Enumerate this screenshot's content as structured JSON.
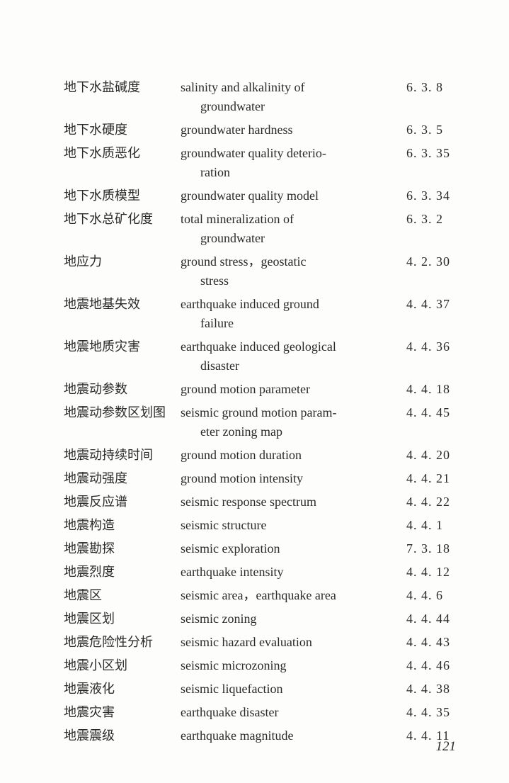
{
  "entries": [
    {
      "cn": "地下水盐碱度",
      "en": "salinity and alkalinity of",
      "en2": "groundwater",
      "num": "6. 3. 8"
    },
    {
      "cn": "地下水硬度",
      "en": "groundwater hardness",
      "en2": "",
      "num": "6. 3. 5"
    },
    {
      "cn": "地下水质恶化",
      "en": "groundwater quality deterio-",
      "en2": "ration",
      "num": "6. 3. 35"
    },
    {
      "cn": "地下水质模型",
      "en": "groundwater quality model",
      "en2": "",
      "num": "6. 3. 34"
    },
    {
      "cn": "地下水总矿化度",
      "en": "total mineralization of",
      "en2": "groundwater",
      "num": "6. 3. 2"
    },
    {
      "cn": "地应力",
      "en": "ground stress，geostatic",
      "en2": "stress",
      "num": "4. 2. 30"
    },
    {
      "cn": "地震地基失效",
      "en": "earthquake induced ground",
      "en2": "failure",
      "num": "4. 4. 37"
    },
    {
      "cn": "地震地质灾害",
      "en": "earthquake induced geological",
      "en2": "disaster",
      "num": "4. 4. 36"
    },
    {
      "cn": "地震动参数",
      "en": "ground motion parameter",
      "en2": "",
      "num": "4. 4. 18"
    },
    {
      "cn": "地震动参数区划图",
      "en": "seismic ground motion param-",
      "en2": "eter zoning map",
      "num": "4. 4. 45"
    },
    {
      "cn": "地震动持续时间",
      "en": "ground motion duration",
      "en2": "",
      "num": "4. 4. 20"
    },
    {
      "cn": "地震动强度",
      "en": "ground motion intensity",
      "en2": "",
      "num": "4. 4. 21"
    },
    {
      "cn": "地震反应谱",
      "en": "seismic response spectrum",
      "en2": "",
      "num": "4. 4. 22"
    },
    {
      "cn": "地震构造",
      "en": "seismic structure",
      "en2": "",
      "num": "4. 4. 1"
    },
    {
      "cn": "地震勘探",
      "en": "seismic exploration",
      "en2": "",
      "num": "7. 3. 18"
    },
    {
      "cn": "地震烈度",
      "en": "earthquake intensity",
      "en2": "",
      "num": "4. 4. 12"
    },
    {
      "cn": "地震区",
      "en": "seismic area，earthquake area",
      "en2": "",
      "num": "4. 4. 6"
    },
    {
      "cn": "地震区划",
      "en": "seismic zoning",
      "en2": "",
      "num": "4. 4. 44"
    },
    {
      "cn": "地震危险性分析",
      "en": "seismic hazard evaluation",
      "en2": "",
      "num": "4. 4. 43"
    },
    {
      "cn": "地震小区划",
      "en": "seismic microzoning",
      "en2": "",
      "num": "4. 4. 46"
    },
    {
      "cn": "地震液化",
      "en": "seismic liquefaction",
      "en2": "",
      "num": "4. 4. 38"
    },
    {
      "cn": "地震灾害",
      "en": "earthquake disaster",
      "en2": "",
      "num": "4. 4. 35"
    },
    {
      "cn": "地震震级",
      "en": "earthquake magnitude",
      "en2": "",
      "num": "4. 4. 11"
    }
  ],
  "page_number": "121"
}
